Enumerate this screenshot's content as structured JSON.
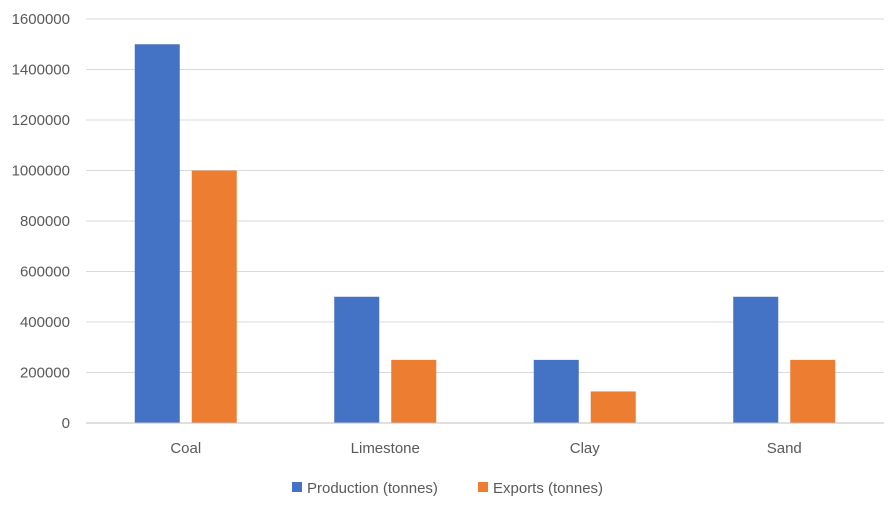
{
  "chart_data": {
    "type": "bar",
    "title": "",
    "xlabel": "",
    "ylabel": "",
    "categories": [
      "Coal",
      "Limestone",
      "Clay",
      "Sand"
    ],
    "series": [
      {
        "name": "Production (tonnes)",
        "color": "#4472c4",
        "values": [
          1500000,
          500000,
          250000,
          500000
        ]
      },
      {
        "name": "Exports (tonnes)",
        "color": "#ed7d31",
        "values": [
          1000000,
          250000,
          125000,
          250000
        ]
      }
    ],
    "ylim": [
      0,
      1600000
    ],
    "yticks": [
      "0",
      "200000",
      "400000",
      "600000",
      "800000",
      "1000000",
      "1200000",
      "1400000",
      "1600000"
    ],
    "grid": true,
    "legend": "bottom"
  }
}
